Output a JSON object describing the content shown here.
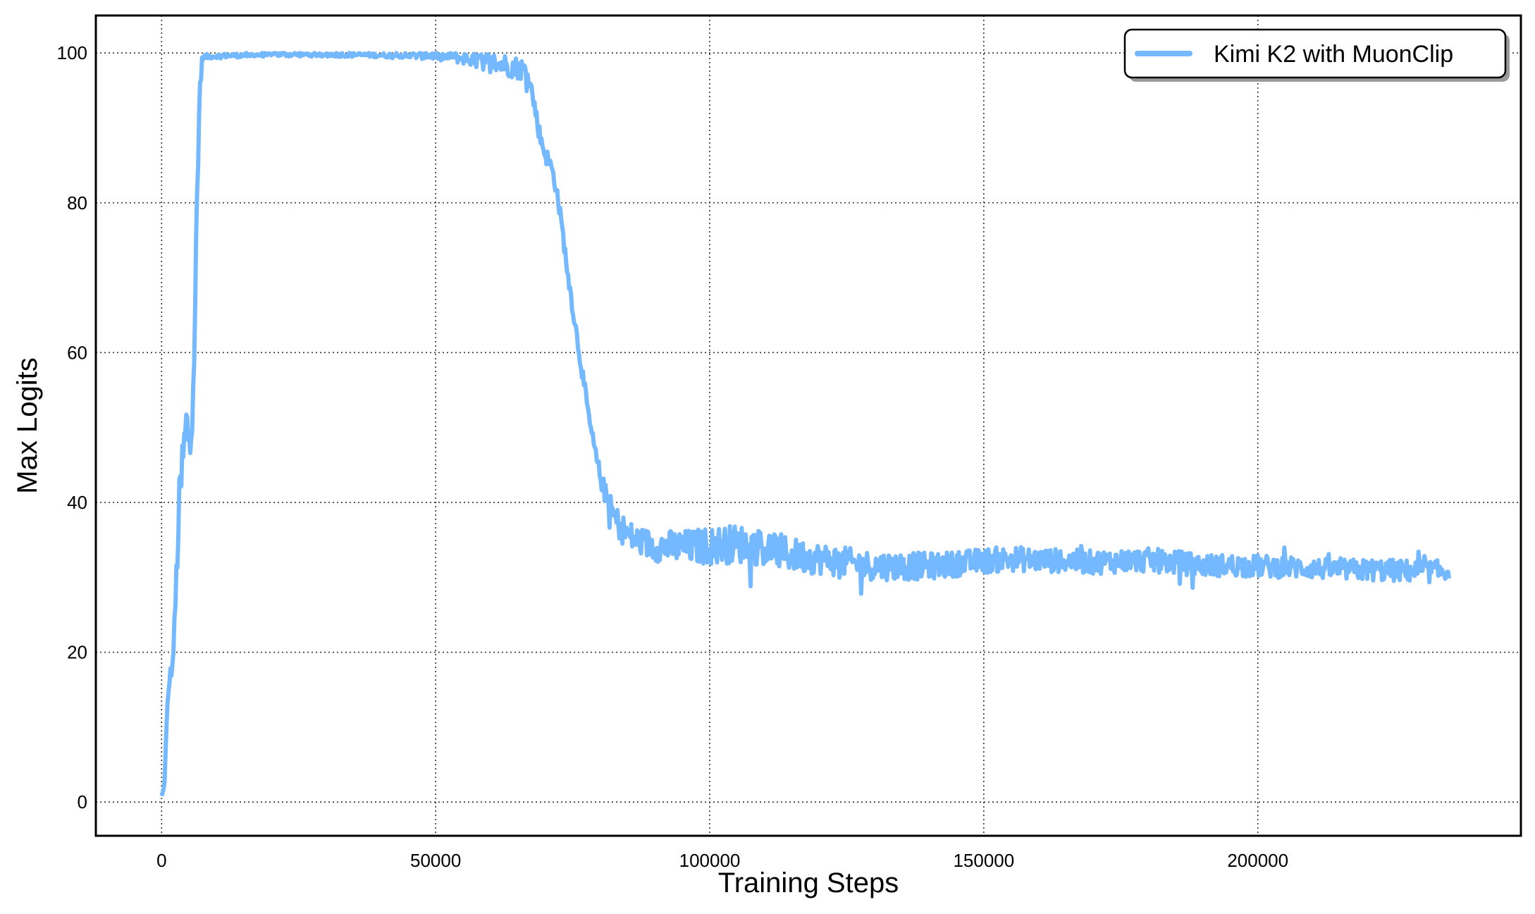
{
  "chart_data": {
    "type": "line",
    "xlabel": "Training Steps",
    "ylabel": "Max Logits",
    "xlim": [
      -12000,
      248000
    ],
    "ylim": [
      -4.5,
      105
    ],
    "xticks": [
      0,
      50000,
      100000,
      150000,
      200000
    ],
    "yticks": [
      0,
      20,
      40,
      60,
      80,
      100
    ],
    "grid": true,
    "legend_position": "top-right",
    "legend_shadow": true,
    "series": [
      {
        "name": "Kimi K2 with MuonClip",
        "color": "#74b9ff",
        "x": [
          0,
          500,
          1000,
          1500,
          2000,
          2500,
          3000,
          3500,
          4000,
          4500,
          5000,
          5500,
          6000,
          6500,
          7000,
          7500,
          8000,
          10000,
          15000,
          20000,
          30000,
          40000,
          50000,
          55000,
          58000,
          60000,
          62000,
          64000,
          66000,
          67000,
          68000,
          69000,
          70000,
          71000,
          72000,
          73000,
          74000,
          75000,
          76000,
          77000,
          78000,
          79000,
          80000,
          81000,
          82000,
          83000,
          84000,
          85000,
          86000,
          88000,
          90000,
          92000,
          95000,
          100000,
          105000,
          110000,
          115000,
          120000,
          125000,
          130000,
          135000,
          140000,
          145000,
          150000,
          155000,
          160000,
          165000,
          170000,
          175000,
          180000,
          185000,
          190000,
          195000,
          200000,
          205000,
          210000,
          215000,
          220000,
          225000,
          230000,
          235000
        ],
        "y": [
          0.8,
          2,
          12,
          17,
          18,
          26,
          36,
          42,
          46,
          50,
          49,
          52,
          62,
          80,
          96,
          99.5,
          99.5,
          99.6,
          99.7,
          99.8,
          99.8,
          99.7,
          99.6,
          99.3,
          99.0,
          98.8,
          98.5,
          98.2,
          97.8,
          97.0,
          93,
          89,
          86.5,
          85,
          82,
          77,
          71,
          66,
          61,
          56,
          51,
          47,
          43.5,
          41,
          39,
          37.5,
          36.5,
          35.8,
          35.2,
          34.6,
          34.2,
          34.1,
          34.0,
          34.2,
          34.5,
          34.0,
          33.0,
          32.5,
          32.0,
          31.5,
          31.5,
          31.5,
          31.8,
          32.2,
          32.5,
          32.3,
          32.2,
          32.0,
          32.2,
          32.3,
          32.0,
          31.6,
          31.6,
          31.5,
          31.4,
          31.2,
          31.0,
          31.0,
          30.9,
          30.8,
          30.8
        ],
        "noise": [
          0.05,
          0.2,
          0.6,
          0.8,
          1.0,
          1.5,
          4.0,
          5.0,
          5.5,
          4.5,
          4.0,
          4.0,
          4.0,
          4.0,
          2.5,
          0.4,
          0.35,
          0.3,
          0.3,
          0.3,
          0.3,
          0.3,
          0.5,
          0.8,
          1.2,
          1.3,
          1.5,
          1.5,
          1.5,
          1.0,
          1.2,
          1.2,
          1.2,
          1.0,
          1.0,
          1.0,
          1.0,
          1.0,
          1.0,
          1.0,
          1.0,
          1.0,
          1.2,
          1.5,
          1.8,
          2.0,
          2.0,
          2.0,
          2.0,
          2.0,
          2.1,
          2.2,
          2.3,
          2.5,
          2.6,
          2.5,
          2.3,
          2.1,
          2.0,
          1.9,
          1.9,
          1.8,
          1.7,
          1.7,
          1.7,
          1.6,
          1.6,
          1.6,
          1.6,
          1.6,
          1.6,
          1.5,
          1.5,
          1.5,
          1.5,
          1.4,
          1.4,
          1.5,
          1.5,
          1.5,
          1.5
        ]
      }
    ]
  }
}
